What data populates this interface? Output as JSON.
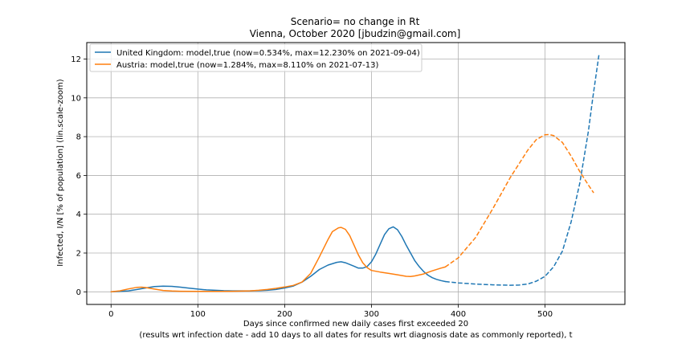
{
  "chart_data": {
    "type": "line",
    "title": "Scenario= no change in Rt",
    "subtitle": "Vienna, October 2020 [jbudzin@gmail.com]",
    "xlabel_line1": "Days since confirmed new daily cases first exceeded 20",
    "xlabel_line2": "(results wrt infection date - add 10 days to all dates for results wrt diagnosis date as commonly reported), t",
    "ylabel": "Infected, I/N [% of population] (lin.scale-zoom)",
    "xlim": [
      -28,
      592
    ],
    "ylim": [
      -0.65,
      12.85
    ],
    "xticks": [
      0,
      100,
      200,
      300,
      400,
      500
    ],
    "yticks": [
      0,
      2,
      4,
      6,
      8,
      10,
      12
    ],
    "grid": true,
    "legend_position": "top-left",
    "series": [
      {
        "name": "United Kingdom: model,true (now=0.534%, max=12.230% on 2021-09-04)",
        "color": "#1f77b4",
        "now_day": 385,
        "points": [
          [
            0,
            0.0
          ],
          [
            10,
            0.02
          ],
          [
            20,
            0.05
          ],
          [
            30,
            0.12
          ],
          [
            40,
            0.2
          ],
          [
            50,
            0.27
          ],
          [
            60,
            0.29
          ],
          [
            70,
            0.28
          ],
          [
            80,
            0.24
          ],
          [
            90,
            0.19
          ],
          [
            100,
            0.14
          ],
          [
            110,
            0.1
          ],
          [
            120,
            0.08
          ],
          [
            130,
            0.06
          ],
          [
            140,
            0.05
          ],
          [
            150,
            0.05
          ],
          [
            160,
            0.05
          ],
          [
            170,
            0.06
          ],
          [
            180,
            0.08
          ],
          [
            190,
            0.12
          ],
          [
            200,
            0.2
          ],
          [
            210,
            0.3
          ],
          [
            220,
            0.5
          ],
          [
            230,
            0.8
          ],
          [
            240,
            1.15
          ],
          [
            250,
            1.38
          ],
          [
            260,
            1.52
          ],
          [
            265,
            1.55
          ],
          [
            270,
            1.5
          ],
          [
            280,
            1.32
          ],
          [
            285,
            1.22
          ],
          [
            290,
            1.22
          ],
          [
            295,
            1.3
          ],
          [
            300,
            1.55
          ],
          [
            305,
            1.95
          ],
          [
            310,
            2.45
          ],
          [
            315,
            2.95
          ],
          [
            320,
            3.25
          ],
          [
            325,
            3.35
          ],
          [
            330,
            3.2
          ],
          [
            335,
            2.85
          ],
          [
            340,
            2.4
          ],
          [
            345,
            2.0
          ],
          [
            350,
            1.6
          ],
          [
            355,
            1.3
          ],
          [
            360,
            1.05
          ],
          [
            365,
            0.86
          ],
          [
            370,
            0.73
          ],
          [
            375,
            0.64
          ],
          [
            380,
            0.58
          ],
          [
            385,
            0.53
          ],
          [
            400,
            0.46
          ],
          [
            420,
            0.4
          ],
          [
            440,
            0.36
          ],
          [
            460,
            0.34
          ],
          [
            470,
            0.35
          ],
          [
            480,
            0.4
          ],
          [
            490,
            0.55
          ],
          [
            500,
            0.8
          ],
          [
            510,
            1.3
          ],
          [
            520,
            2.1
          ],
          [
            530,
            3.6
          ],
          [
            540,
            5.6
          ],
          [
            550,
            8.3
          ],
          [
            555,
            10.0
          ],
          [
            562,
            12.2
          ]
        ]
      },
      {
        "name": "Austria: model,true (now=1.284%, max=8.110% on 2021-07-13)",
        "color": "#ff7f0e",
        "now_day": 385,
        "points": [
          [
            0,
            0.0
          ],
          [
            10,
            0.05
          ],
          [
            20,
            0.15
          ],
          [
            30,
            0.23
          ],
          [
            35,
            0.24
          ],
          [
            40,
            0.22
          ],
          [
            50,
            0.14
          ],
          [
            60,
            0.07
          ],
          [
            70,
            0.04
          ],
          [
            80,
            0.03
          ],
          [
            100,
            0.02
          ],
          [
            120,
            0.02
          ],
          [
            140,
            0.03
          ],
          [
            160,
            0.05
          ],
          [
            170,
            0.08
          ],
          [
            180,
            0.12
          ],
          [
            190,
            0.18
          ],
          [
            200,
            0.25
          ],
          [
            210,
            0.33
          ],
          [
            220,
            0.5
          ],
          [
            230,
            0.95
          ],
          [
            240,
            1.8
          ],
          [
            250,
            2.7
          ],
          [
            255,
            3.1
          ],
          [
            262,
            3.3
          ],
          [
            265,
            3.32
          ],
          [
            270,
            3.22
          ],
          [
            275,
            2.9
          ],
          [
            280,
            2.4
          ],
          [
            285,
            1.9
          ],
          [
            290,
            1.5
          ],
          [
            295,
            1.25
          ],
          [
            300,
            1.1
          ],
          [
            310,
            1.02
          ],
          [
            320,
            0.95
          ],
          [
            330,
            0.88
          ],
          [
            340,
            0.8
          ],
          [
            345,
            0.79
          ],
          [
            350,
            0.82
          ],
          [
            360,
            0.92
          ],
          [
            370,
            1.08
          ],
          [
            380,
            1.22
          ],
          [
            385,
            1.28
          ],
          [
            400,
            1.75
          ],
          [
            420,
            2.8
          ],
          [
            440,
            4.3
          ],
          [
            460,
            5.9
          ],
          [
            480,
            7.3
          ],
          [
            490,
            7.85
          ],
          [
            500,
            8.1
          ],
          [
            505,
            8.11
          ],
          [
            510,
            8.05
          ],
          [
            520,
            7.7
          ],
          [
            530,
            7.0
          ],
          [
            540,
            6.2
          ],
          [
            550,
            5.5
          ],
          [
            556,
            5.1
          ]
        ]
      }
    ]
  }
}
